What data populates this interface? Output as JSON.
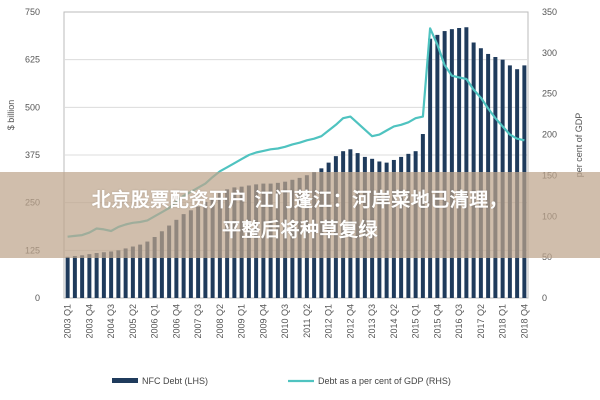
{
  "chart_data": {
    "type": "bar+line",
    "categories": [
      "2003 Q1",
      "2003 Q2",
      "2003 Q3",
      "2003 Q4",
      "2004 Q1",
      "2004 Q2",
      "2004 Q3",
      "2004 Q4",
      "2005 Q1",
      "2005 Q2",
      "2005 Q3",
      "2005 Q4",
      "2006 Q1",
      "2006 Q2",
      "2006 Q3",
      "2006 Q4",
      "2007 Q1",
      "2007 Q2",
      "2007 Q3",
      "2007 Q4",
      "2008 Q1",
      "2008 Q2",
      "2008 Q3",
      "2008 Q4",
      "2009 Q1",
      "2009 Q2",
      "2009 Q3",
      "2009 Q4",
      "2010 Q1",
      "2010 Q2",
      "2010 Q3",
      "2010 Q4",
      "2011 Q1",
      "2011 Q2",
      "2011 Q3",
      "2011 Q4",
      "2012 Q1",
      "2012 Q2",
      "2012 Q3",
      "2012 Q4",
      "2013 Q1",
      "2013 Q2",
      "2013 Q3",
      "2013 Q4",
      "2014 Q1",
      "2014 Q2",
      "2014 Q3",
      "2014 Q4",
      "2015 Q1",
      "2015 Q2",
      "2015 Q3",
      "2015 Q4",
      "2016 Q1",
      "2016 Q2",
      "2016 Q3",
      "2016 Q4",
      "2017 Q1",
      "2017 Q2",
      "2017 Q3",
      "2017 Q4",
      "2018 Q1",
      "2018 Q2",
      "2018 Q3",
      "2018 Q4"
    ],
    "x_tick_labels": [
      "2003 Q1",
      "2003 Q4",
      "2004 Q3",
      "2005 Q2",
      "2006 Q1",
      "2006 Q4",
      "2007 Q3",
      "2008 Q2",
      "2009 Q1",
      "2009 Q4",
      "2010 Q3",
      "2011 Q2",
      "2012 Q1",
      "2012 Q4",
      "2013 Q3",
      "2014 Q2",
      "2015 Q1",
      "2015 Q4",
      "2016 Q3",
      "2017 Q2",
      "2018 Q1",
      "2018 Q4"
    ],
    "series": [
      {
        "name": "NFC Debt (LHS)",
        "axis": "left",
        "kind": "bar",
        "color": "#1f3b5c",
        "values": [
          108,
          110,
          112,
          115,
          118,
          120,
          122,
          125,
          130,
          135,
          140,
          148,
          160,
          175,
          190,
          205,
          220,
          230,
          240,
          252,
          262,
          275,
          285,
          290,
          292,
          295,
          298,
          300,
          300,
          302,
          305,
          310,
          315,
          322,
          330,
          340,
          355,
          372,
          385,
          390,
          380,
          370,
          365,
          358,
          355,
          362,
          370,
          378,
          385,
          430,
          680,
          690,
          700,
          705,
          708,
          710,
          670,
          655,
          640,
          632,
          625,
          610,
          600,
          610
        ],
        "values_display_start": 0
      },
      {
        "name": "Debt as a per cent of GDP (RHS)",
        "axis": "right",
        "kind": "line",
        "color": "#4fc3c0",
        "values": [
          75,
          76,
          77,
          80,
          85,
          84,
          82,
          87,
          90,
          92,
          93,
          95,
          100,
          105,
          110,
          118,
          125,
          130,
          135,
          140,
          148,
          155,
          160,
          165,
          170,
          175,
          178,
          180,
          182,
          183,
          185,
          188,
          190,
          193,
          195,
          198,
          205,
          212,
          220,
          222,
          214,
          206,
          198,
          200,
          205,
          210,
          212,
          215,
          220,
          222,
          330,
          310,
          285,
          272,
          270,
          268,
          255,
          245,
          232,
          220,
          210,
          200,
          195,
          193
        ]
      }
    ],
    "y_left": {
      "label": "$ billion",
      "ticks": [
        "0",
        "125",
        "250",
        "375",
        "500",
        "625",
        "750"
      ],
      "range": [
        0,
        750
      ]
    },
    "y_right": {
      "label": "per cent of GDP",
      "ticks": [
        "0",
        "50",
        "100",
        "150",
        "200",
        "250",
        "300",
        "350"
      ],
      "range": [
        0,
        350
      ]
    },
    "grid": true,
    "legend": {
      "placement": "bottom",
      "items": [
        "NFC Debt (LHS)",
        "Debt as a per cent of GDP (RHS)"
      ]
    }
  },
  "banner": {
    "line1": "北京股票配资开户 江门蓬江：河岸菜地已清理，",
    "line2": "平整后将种草复绿"
  },
  "colors": {
    "bar": "#1f3b5c",
    "line": "#4fc3c0",
    "grid": "#dcdcdc",
    "banner_bg": "#bea58c"
  }
}
